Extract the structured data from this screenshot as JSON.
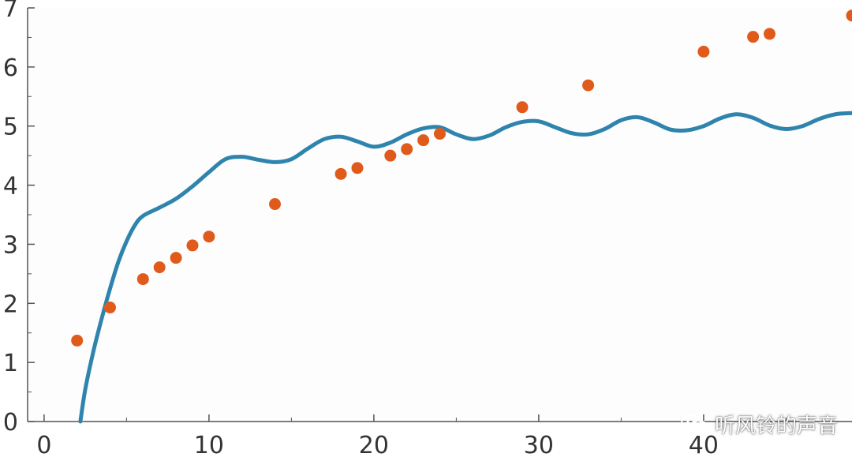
{
  "chart_data": {
    "type": "scatter",
    "title": "",
    "xlabel": "",
    "ylabel": "",
    "xlim": [
      -1,
      49
    ],
    "ylim": [
      0,
      7
    ],
    "x_ticks": [
      0,
      10,
      20,
      30,
      40
    ],
    "y_ticks": [
      0,
      1,
      2,
      3,
      4,
      5,
      6,
      7
    ],
    "grid": false,
    "colors": {
      "points": "#e05a1b",
      "curve": "#2f84ad",
      "axis": "#555555"
    },
    "series": [
      {
        "kind": "scatter",
        "points": [
          [
            2,
            1.37
          ],
          [
            4,
            1.93
          ],
          [
            6,
            2.41
          ],
          [
            7,
            2.61
          ],
          [
            8,
            2.77
          ],
          [
            9,
            2.98
          ],
          [
            10,
            3.13
          ],
          [
            14,
            3.68
          ],
          [
            18,
            4.19
          ],
          [
            19,
            4.29
          ],
          [
            21,
            4.5
          ],
          [
            22,
            4.61
          ],
          [
            23,
            4.76
          ],
          [
            24,
            4.87
          ],
          [
            29,
            5.32
          ],
          [
            33,
            5.69
          ],
          [
            40,
            6.26
          ],
          [
            43,
            6.51
          ],
          [
            44,
            6.56
          ],
          [
            49,
            6.87
          ]
        ]
      },
      {
        "kind": "line",
        "x": [
          2.2,
          2.5,
          3,
          3.5,
          4,
          4.5,
          5,
          5.5,
          6,
          7,
          8,
          9,
          10,
          11,
          12,
          13,
          14,
          15,
          16,
          17,
          18,
          19,
          20,
          21,
          22,
          23,
          24,
          25,
          26,
          27,
          28,
          29,
          30,
          31,
          32,
          33,
          34,
          35,
          36,
          37,
          38,
          39,
          40,
          41,
          42,
          43,
          44,
          45,
          46,
          47,
          48,
          49
        ],
        "y": [
          0.0,
          0.55,
          1.2,
          1.75,
          2.25,
          2.7,
          3.05,
          3.32,
          3.48,
          3.62,
          3.77,
          3.98,
          4.22,
          4.44,
          4.48,
          4.43,
          4.39,
          4.44,
          4.62,
          4.78,
          4.82,
          4.74,
          4.65,
          4.72,
          4.86,
          4.96,
          4.98,
          4.86,
          4.78,
          4.84,
          4.98,
          5.07,
          5.08,
          4.98,
          4.88,
          4.86,
          4.95,
          5.1,
          5.15,
          5.06,
          4.94,
          4.93,
          5.0,
          5.13,
          5.2,
          5.14,
          5.01,
          4.95,
          5.0,
          5.12,
          5.2,
          5.22
        ]
      }
    ]
  },
  "watermark": {
    "text": "听风铃的声音",
    "icon": "wechat-icon"
  }
}
